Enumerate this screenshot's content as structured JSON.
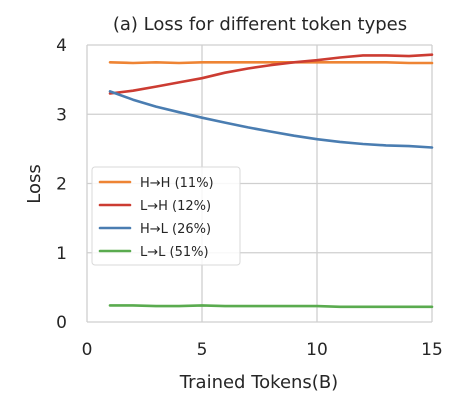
{
  "chart_data": {
    "type": "line",
    "title": "(a) Loss for different token types",
    "xlabel": "Trained Tokens(B)",
    "ylabel": "Loss",
    "xlim": [
      0,
      15
    ],
    "ylim": [
      0,
      4
    ],
    "xticks": [
      0,
      5,
      10,
      15
    ],
    "yticks": [
      0,
      1,
      2,
      3,
      4
    ],
    "xtick_labels": [
      "0",
      "5",
      "10",
      "15"
    ],
    "ytick_labels": [
      "0",
      "1",
      "2",
      "3",
      "4"
    ],
    "grid": true,
    "legend_position": "center-left",
    "series": [
      {
        "name": "H→H (11%)",
        "color": "#ee8434",
        "x": [
          1,
          2,
          3,
          4,
          5,
          6,
          7,
          8,
          9,
          10,
          11,
          12,
          13,
          14,
          15
        ],
        "y": [
          3.75,
          3.74,
          3.75,
          3.74,
          3.75,
          3.75,
          3.75,
          3.75,
          3.75,
          3.75,
          3.75,
          3.75,
          3.75,
          3.74,
          3.74
        ]
      },
      {
        "name": "L→H (12%)",
        "color": "#cc3c32",
        "x": [
          1,
          2,
          3,
          4,
          5,
          6,
          7,
          8,
          9,
          10,
          11,
          12,
          13,
          14,
          15
        ],
        "y": [
          3.3,
          3.34,
          3.4,
          3.46,
          3.52,
          3.6,
          3.66,
          3.71,
          3.75,
          3.78,
          3.82,
          3.85,
          3.85,
          3.84,
          3.86
        ]
      },
      {
        "name": "H→L (26%)",
        "color": "#4a7db1",
        "x": [
          1,
          2,
          3,
          4,
          5,
          6,
          7,
          8,
          9,
          10,
          11,
          12,
          13,
          14,
          15
        ],
        "y": [
          3.33,
          3.21,
          3.11,
          3.03,
          2.95,
          2.88,
          2.81,
          2.75,
          2.69,
          2.64,
          2.6,
          2.57,
          2.55,
          2.54,
          2.52
        ]
      },
      {
        "name": "L→L (51%)",
        "color": "#5aab4f",
        "x": [
          1,
          2,
          3,
          4,
          5,
          6,
          7,
          8,
          9,
          10,
          11,
          12,
          13,
          14,
          15
        ],
        "y": [
          0.24,
          0.24,
          0.23,
          0.23,
          0.24,
          0.23,
          0.23,
          0.23,
          0.23,
          0.23,
          0.22,
          0.22,
          0.22,
          0.22,
          0.22
        ]
      }
    ]
  }
}
